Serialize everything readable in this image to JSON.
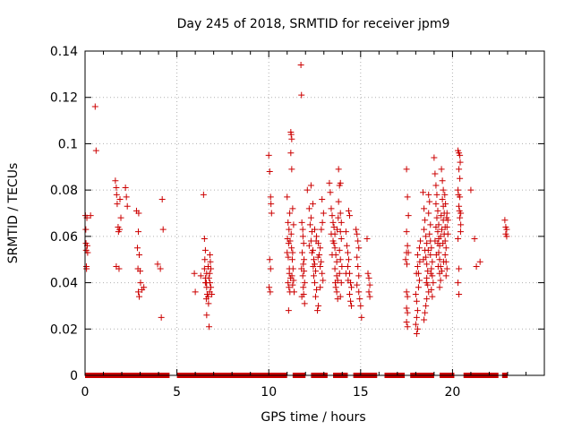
{
  "chart_data": {
    "type": "scatter",
    "title": "Day 245 of 2018, SRMTID for receiver jpm9",
    "xlabel": "GPS time / hours",
    "ylabel": "SRMTID / TECUs",
    "xlim": [
      0,
      25
    ],
    "ylim": [
      0,
      0.14
    ],
    "x_ticks": [
      0,
      5,
      10,
      15,
      20
    ],
    "x_tick_labels": [
      "0",
      "5",
      "10",
      "15",
      "20"
    ],
    "y_ticks": [
      0,
      0.02,
      0.04,
      0.06,
      0.08,
      0.1,
      0.12,
      0.14
    ],
    "y_tick_labels": [
      "0",
      "0.02",
      "0.04",
      "0.06",
      "0.08",
      "0.1",
      "0.12",
      "0.14"
    ],
    "grid": true,
    "marker": "plus",
    "color": "#cc0000",
    "zero_band_ranges": [
      [
        0,
        4.6
      ],
      [
        5.0,
        11.0
      ],
      [
        11.3,
        12.0
      ],
      [
        12.3,
        13.2
      ],
      [
        13.5,
        14.3
      ],
      [
        14.6,
        15.9
      ],
      [
        16.3,
        17.4
      ],
      [
        17.7,
        19.0
      ],
      [
        19.3,
        20.1
      ],
      [
        20.6,
        22.5
      ],
      [
        22.7,
        23.0
      ]
    ],
    "points": [
      [
        0.02,
        0.069
      ],
      [
        0.04,
        0.063
      ],
      [
        0.05,
        0.057
      ],
      [
        0.06,
        0.054
      ],
      [
        0.07,
        0.047
      ],
      [
        0.08,
        0.046
      ],
      [
        0.1,
        0.068
      ],
      [
        0.12,
        0.056
      ],
      [
        0.14,
        0.053
      ],
      [
        0.3,
        0.069
      ],
      [
        0.55,
        0.116
      ],
      [
        0.6,
        0.097
      ],
      [
        1.65,
        0.084
      ],
      [
        1.7,
        0.081
      ],
      [
        1.72,
        0.078
      ],
      [
        1.75,
        0.074
      ],
      [
        1.8,
        0.064
      ],
      [
        1.82,
        0.062
      ],
      [
        1.7,
        0.047
      ],
      [
        1.85,
        0.046
      ],
      [
        1.9,
        0.076
      ],
      [
        1.95,
        0.068
      ],
      [
        1.88,
        0.063
      ],
      [
        2.2,
        0.081
      ],
      [
        2.25,
        0.077
      ],
      [
        2.3,
        0.073
      ],
      [
        2.8,
        0.071
      ],
      [
        2.9,
        0.062
      ],
      [
        2.85,
        0.055
      ],
      [
        2.95,
        0.052
      ],
      [
        2.88,
        0.046
      ],
      [
        3.0,
        0.045
      ],
      [
        3.02,
        0.04
      ],
      [
        2.9,
        0.036
      ],
      [
        2.95,
        0.034
      ],
      [
        3.1,
        0.037
      ],
      [
        3.2,
        0.038
      ],
      [
        2.92,
        0.07
      ],
      [
        3.95,
        0.048
      ],
      [
        4.1,
        0.046
      ],
      [
        4.2,
        0.076
      ],
      [
        4.25,
        0.063
      ],
      [
        4.15,
        0.025
      ],
      [
        5.95,
        0.044
      ],
      [
        6.0,
        0.036
      ],
      [
        6.3,
        0.043
      ],
      [
        6.45,
        0.078
      ],
      [
        6.5,
        0.059
      ],
      [
        6.55,
        0.054
      ],
      [
        6.52,
        0.05
      ],
      [
        6.5,
        0.046
      ],
      [
        6.55,
        0.042
      ],
      [
        6.6,
        0.04
      ],
      [
        6.62,
        0.038
      ],
      [
        6.65,
        0.035
      ],
      [
        6.6,
        0.033
      ],
      [
        6.62,
        0.026
      ],
      [
        6.7,
        0.034
      ],
      [
        6.72,
        0.031
      ],
      [
        6.75,
        0.021
      ],
      [
        6.8,
        0.052
      ],
      [
        6.82,
        0.049
      ],
      [
        6.85,
        0.046
      ],
      [
        6.78,
        0.044
      ],
      [
        6.8,
        0.04
      ],
      [
        6.85,
        0.038
      ],
      [
        6.9,
        0.035
      ],
      [
        6.55,
        0.04
      ],
      [
        6.7,
        0.047
      ],
      [
        6.74,
        0.042
      ],
      [
        6.62,
        0.044
      ],
      [
        6.78,
        0.036
      ],
      [
        10.0,
        0.095
      ],
      [
        10.05,
        0.088
      ],
      [
        10.1,
        0.077
      ],
      [
        10.12,
        0.074
      ],
      [
        10.15,
        0.07
      ],
      [
        10.05,
        0.05
      ],
      [
        10.1,
        0.046
      ],
      [
        10.02,
        0.038
      ],
      [
        10.08,
        0.036
      ],
      [
        11.0,
        0.077
      ],
      [
        11.05,
        0.066
      ],
      [
        11.1,
        0.063
      ],
      [
        11.02,
        0.059
      ],
      [
        11.08,
        0.057
      ],
      [
        11.0,
        0.053
      ],
      [
        11.12,
        0.046
      ],
      [
        11.05,
        0.04
      ],
      [
        11.1,
        0.038
      ],
      [
        11.15,
        0.036
      ],
      [
        11.08,
        0.028
      ],
      [
        11.2,
        0.105
      ],
      [
        11.22,
        0.104
      ],
      [
        11.25,
        0.102
      ],
      [
        11.2,
        0.096
      ],
      [
        11.25,
        0.089
      ],
      [
        11.3,
        0.072
      ],
      [
        11.35,
        0.065
      ],
      [
        11.3,
        0.053
      ],
      [
        11.28,
        0.05
      ],
      [
        11.32,
        0.046
      ],
      [
        11.35,
        0.041
      ],
      [
        11.3,
        0.039
      ],
      [
        11.38,
        0.036
      ],
      [
        11.18,
        0.042
      ],
      [
        11.22,
        0.061
      ],
      [
        11.14,
        0.07
      ],
      [
        11.16,
        0.058
      ],
      [
        11.24,
        0.055
      ],
      [
        11.06,
        0.051
      ],
      [
        11.12,
        0.044
      ],
      [
        11.26,
        0.043
      ],
      [
        11.75,
        0.134
      ],
      [
        11.78,
        0.121
      ],
      [
        11.8,
        0.066
      ],
      [
        11.85,
        0.063
      ],
      [
        11.9,
        0.057
      ],
      [
        11.82,
        0.053
      ],
      [
        11.88,
        0.048
      ],
      [
        11.92,
        0.045
      ],
      [
        11.85,
        0.043
      ],
      [
        11.95,
        0.04
      ],
      [
        11.88,
        0.038
      ],
      [
        11.9,
        0.035
      ],
      [
        11.8,
        0.034
      ],
      [
        11.95,
        0.031
      ],
      [
        11.86,
        0.06
      ],
      [
        11.92,
        0.05
      ],
      [
        11.78,
        0.046
      ],
      [
        12.1,
        0.08
      ],
      [
        12.2,
        0.072
      ],
      [
        12.3,
        0.068
      ],
      [
        12.25,
        0.065
      ],
      [
        12.35,
        0.062
      ],
      [
        12.3,
        0.058
      ],
      [
        12.4,
        0.054
      ],
      [
        12.45,
        0.05
      ],
      [
        12.5,
        0.048
      ],
      [
        12.55,
        0.045
      ],
      [
        12.45,
        0.043
      ],
      [
        12.5,
        0.04
      ],
      [
        12.6,
        0.037
      ],
      [
        12.55,
        0.034
      ],
      [
        12.3,
        0.082
      ],
      [
        12.4,
        0.074
      ],
      [
        12.5,
        0.063
      ],
      [
        12.6,
        0.06
      ],
      [
        12.7,
        0.057
      ],
      [
        12.8,
        0.055
      ],
      [
        12.75,
        0.052
      ],
      [
        12.85,
        0.049
      ],
      [
        12.8,
        0.047
      ],
      [
        12.9,
        0.044
      ],
      [
        12.95,
        0.041
      ],
      [
        12.8,
        0.038
      ],
      [
        12.7,
        0.03
      ],
      [
        12.65,
        0.028
      ],
      [
        12.9,
        0.076
      ],
      [
        12.98,
        0.07
      ],
      [
        12.92,
        0.066
      ],
      [
        12.86,
        0.063
      ],
      [
        12.2,
        0.056
      ],
      [
        12.35,
        0.053
      ],
      [
        12.42,
        0.047
      ],
      [
        12.58,
        0.058
      ],
      [
        12.68,
        0.051
      ],
      [
        13.3,
        0.083
      ],
      [
        13.35,
        0.079
      ],
      [
        13.4,
        0.072
      ],
      [
        13.45,
        0.069
      ],
      [
        13.5,
        0.066
      ],
      [
        13.55,
        0.064
      ],
      [
        13.6,
        0.061
      ],
      [
        13.5,
        0.058
      ],
      [
        13.6,
        0.055
      ],
      [
        13.65,
        0.052
      ],
      [
        13.7,
        0.049
      ],
      [
        13.6,
        0.046
      ],
      [
        13.7,
        0.043
      ],
      [
        13.75,
        0.041
      ],
      [
        13.65,
        0.038
      ],
      [
        13.7,
        0.036
      ],
      [
        13.75,
        0.033
      ],
      [
        13.8,
        0.089
      ],
      [
        13.85,
        0.082
      ],
      [
        13.9,
        0.083
      ],
      [
        13.8,
        0.075
      ],
      [
        13.9,
        0.07
      ],
      [
        13.95,
        0.066
      ],
      [
        13.9,
        0.062
      ],
      [
        13.95,
        0.059
      ],
      [
        13.85,
        0.054
      ],
      [
        13.9,
        0.05
      ],
      [
        13.98,
        0.047
      ],
      [
        13.85,
        0.044
      ],
      [
        13.95,
        0.04
      ],
      [
        13.9,
        0.034
      ],
      [
        13.4,
        0.061
      ],
      [
        13.55,
        0.057
      ],
      [
        13.62,
        0.04
      ],
      [
        13.72,
        0.063
      ],
      [
        13.78,
        0.068
      ],
      [
        13.45,
        0.052
      ],
      [
        14.2,
        0.062
      ],
      [
        14.25,
        0.056
      ],
      [
        14.3,
        0.053
      ],
      [
        14.35,
        0.05
      ],
      [
        14.3,
        0.047
      ],
      [
        14.4,
        0.044
      ],
      [
        14.45,
        0.04
      ],
      [
        14.5,
        0.038
      ],
      [
        14.4,
        0.035
      ],
      [
        14.45,
        0.032
      ],
      [
        14.5,
        0.03
      ],
      [
        14.35,
        0.071
      ],
      [
        14.4,
        0.069
      ],
      [
        14.2,
        0.044
      ],
      [
        14.32,
        0.041
      ],
      [
        14.8,
        0.061
      ],
      [
        14.85,
        0.058
      ],
      [
        14.9,
        0.055
      ],
      [
        14.8,
        0.051
      ],
      [
        14.85,
        0.047
      ],
      [
        14.9,
        0.043
      ],
      [
        14.8,
        0.039
      ],
      [
        14.9,
        0.036
      ],
      [
        14.95,
        0.033
      ],
      [
        15.0,
        0.03
      ],
      [
        15.05,
        0.025
      ],
      [
        14.75,
        0.063
      ],
      [
        15.35,
        0.059
      ],
      [
        15.4,
        0.044
      ],
      [
        15.45,
        0.042
      ],
      [
        15.5,
        0.039
      ],
      [
        15.45,
        0.036
      ],
      [
        15.5,
        0.034
      ],
      [
        17.5,
        0.089
      ],
      [
        17.55,
        0.077
      ],
      [
        17.6,
        0.069
      ],
      [
        17.5,
        0.062
      ],
      [
        17.55,
        0.056
      ],
      [
        17.5,
        0.053
      ],
      [
        17.45,
        0.05
      ],
      [
        17.52,
        0.048
      ],
      [
        17.5,
        0.036
      ],
      [
        17.55,
        0.034
      ],
      [
        17.5,
        0.029
      ],
      [
        17.55,
        0.027
      ],
      [
        17.5,
        0.023
      ],
      [
        17.55,
        0.021
      ],
      [
        17.6,
        0.053
      ],
      [
        18.0,
        0.035
      ],
      [
        18.05,
        0.032
      ],
      [
        18.1,
        0.028
      ],
      [
        18.05,
        0.025
      ],
      [
        18.0,
        0.022
      ],
      [
        18.1,
        0.02
      ],
      [
        18.05,
        0.018
      ],
      [
        18.1,
        0.047
      ],
      [
        18.15,
        0.044
      ],
      [
        18.2,
        0.041
      ],
      [
        18.15,
        0.038
      ],
      [
        18.2,
        0.055
      ],
      [
        18.25,
        0.058
      ],
      [
        18.1,
        0.052
      ],
      [
        18.22,
        0.049
      ],
      [
        18.04,
        0.044
      ],
      [
        18.4,
        0.079
      ],
      [
        18.45,
        0.072
      ],
      [
        18.5,
        0.067
      ],
      [
        18.45,
        0.063
      ],
      [
        18.55,
        0.06
      ],
      [
        18.6,
        0.057
      ],
      [
        18.5,
        0.054
      ],
      [
        18.55,
        0.051
      ],
      [
        18.6,
        0.048
      ],
      [
        18.65,
        0.045
      ],
      [
        18.6,
        0.042
      ],
      [
        18.65,
        0.039
      ],
      [
        18.7,
        0.036
      ],
      [
        18.6,
        0.033
      ],
      [
        18.55,
        0.03
      ],
      [
        18.5,
        0.027
      ],
      [
        18.45,
        0.024
      ],
      [
        18.7,
        0.078
      ],
      [
        18.75,
        0.075
      ],
      [
        18.7,
        0.07
      ],
      [
        18.8,
        0.065
      ],
      [
        18.75,
        0.061
      ],
      [
        18.8,
        0.058
      ],
      [
        18.85,
        0.055
      ],
      [
        18.8,
        0.052
      ],
      [
        18.9,
        0.049
      ],
      [
        18.85,
        0.046
      ],
      [
        18.9,
        0.043
      ],
      [
        18.95,
        0.04
      ],
      [
        18.85,
        0.037
      ],
      [
        18.9,
        0.034
      ],
      [
        18.42,
        0.05
      ],
      [
        18.58,
        0.04
      ],
      [
        18.68,
        0.054
      ],
      [
        18.82,
        0.044
      ],
      [
        19.0,
        0.094
      ],
      [
        19.05,
        0.087
      ],
      [
        19.1,
        0.082
      ],
      [
        19.15,
        0.078
      ],
      [
        19.1,
        0.074
      ],
      [
        19.2,
        0.071
      ],
      [
        19.15,
        0.068
      ],
      [
        19.25,
        0.065
      ],
      [
        19.2,
        0.062
      ],
      [
        19.25,
        0.059
      ],
      [
        19.3,
        0.056
      ],
      [
        19.25,
        0.053
      ],
      [
        19.3,
        0.05
      ],
      [
        19.35,
        0.047
      ],
      [
        19.3,
        0.044
      ],
      [
        19.35,
        0.041
      ],
      [
        19.3,
        0.038
      ],
      [
        19.4,
        0.089
      ],
      [
        19.45,
        0.084
      ],
      [
        19.5,
        0.08
      ],
      [
        19.45,
        0.076
      ],
      [
        19.5,
        0.073
      ],
      [
        19.55,
        0.07
      ],
      [
        19.5,
        0.067
      ],
      [
        19.6,
        0.064
      ],
      [
        19.55,
        0.061
      ],
      [
        19.6,
        0.058
      ],
      [
        19.65,
        0.055
      ],
      [
        19.6,
        0.052
      ],
      [
        19.65,
        0.049
      ],
      [
        19.7,
        0.046
      ],
      [
        19.65,
        0.043
      ],
      [
        19.7,
        0.07
      ],
      [
        19.75,
        0.067
      ],
      [
        19.7,
        0.064
      ],
      [
        19.75,
        0.061
      ],
      [
        19.05,
        0.058
      ],
      [
        19.12,
        0.052
      ],
      [
        19.22,
        0.047
      ],
      [
        19.38,
        0.069
      ],
      [
        19.42,
        0.063
      ],
      [
        19.48,
        0.057
      ],
      [
        19.58,
        0.078
      ],
      [
        19.62,
        0.074
      ],
      [
        19.68,
        0.068
      ],
      [
        19.1,
        0.064
      ],
      [
        19.2,
        0.057
      ],
      [
        19.35,
        0.06
      ],
      [
        19.52,
        0.049
      ],
      [
        19.42,
        0.045
      ],
      [
        20.3,
        0.097
      ],
      [
        20.35,
        0.096
      ],
      [
        20.4,
        0.095
      ],
      [
        20.35,
        0.089
      ],
      [
        20.4,
        0.085
      ],
      [
        20.3,
        0.08
      ],
      [
        20.4,
        0.077
      ],
      [
        20.35,
        0.073
      ],
      [
        20.45,
        0.07
      ],
      [
        20.4,
        0.068
      ],
      [
        20.45,
        0.065
      ],
      [
        20.3,
        0.059
      ],
      [
        20.35,
        0.046
      ],
      [
        20.3,
        0.04
      ],
      [
        20.35,
        0.035
      ],
      [
        20.42,
        0.092
      ],
      [
        20.32,
        0.078
      ],
      [
        20.38,
        0.071
      ],
      [
        20.44,
        0.062
      ],
      [
        21.0,
        0.08
      ],
      [
        21.2,
        0.059
      ],
      [
        21.3,
        0.047
      ],
      [
        21.5,
        0.049
      ],
      [
        22.85,
        0.067
      ],
      [
        22.9,
        0.064
      ],
      [
        22.95,
        0.063
      ],
      [
        22.9,
        0.061
      ],
      [
        22.95,
        0.06
      ]
    ]
  }
}
